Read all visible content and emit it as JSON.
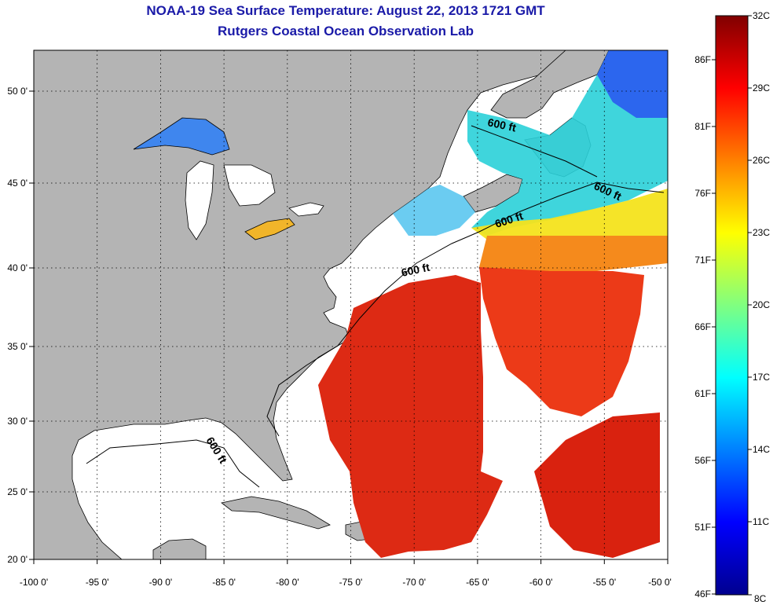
{
  "header": {
    "title": "NOAA-19 Sea Surface Temperature:  August 22, 2013 1721 GMT",
    "subtitle": "Rutgers Coastal Ocean Observation Lab"
  },
  "map": {
    "lon_range": [
      -100,
      -50
    ],
    "lat_range": [
      20,
      52
    ],
    "lon_ticks": [
      "-100 0'",
      "-95 0'",
      "-90 0'",
      "-85 0'",
      "-80 0'",
      "-75 0'",
      "-70 0'",
      "-65 0'",
      "-60 0'",
      "-55 0'",
      "-50 0'"
    ],
    "lat_ticks": [
      "20 0'",
      "25 0'",
      "30 0'",
      "35 0'",
      "40 0'",
      "45 0'",
      "50 0'"
    ],
    "isobath_labels": [
      "600 ft",
      "600 ft",
      "600 ft",
      "600 ft",
      "600 ft"
    ],
    "land_color": "#b4b4b4"
  },
  "colorbar": {
    "celsius": [
      "32C",
      "29C",
      "26C",
      "23C",
      "20C",
      "17C",
      "14C",
      "11C",
      "8C"
    ],
    "fahrenheit": [
      "86F",
      "81F",
      "76F",
      "71F",
      "66F",
      "61F",
      "56F",
      "51F",
      "46F"
    ],
    "colors": [
      "#00008f",
      "#0000ff",
      "#0080ff",
      "#00ffff",
      "#80ff80",
      "#ffff00",
      "#ff8000",
      "#ff0000",
      "#800000"
    ]
  }
}
